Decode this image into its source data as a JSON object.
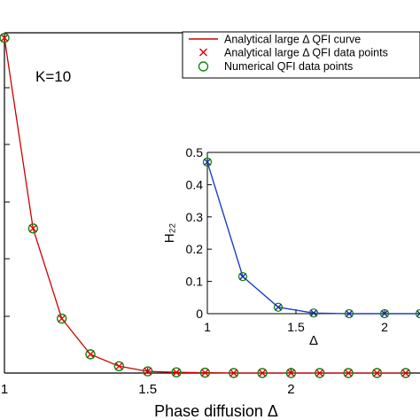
{
  "chart_data": [
    {
      "type": "line",
      "title": "",
      "xlabel": "Phase diffusion Δ",
      "ylabel": "",
      "xlim": [
        1.0,
        2.45
      ],
      "ylim": [
        0,
        1.0
      ],
      "xticks": [
        "1",
        "1.5",
        "2"
      ],
      "annotation": "K=10",
      "legend_position": "top-right",
      "legend": [
        {
          "label": "Analytical large Δ QFI curve",
          "style": "line",
          "color": "#cc0000"
        },
        {
          "label": "Analytical large Δ QFI data points",
          "style": "x-marker",
          "color": "#dd0000"
        },
        {
          "label": "Numerical QFI data points",
          "style": "circle-marker",
          "color": "#118811"
        }
      ],
      "series": [
        {
          "name": "Analytical large Δ QFI curve",
          "x": [
            1.0,
            1.1,
            1.2,
            1.3,
            1.4,
            1.5,
            1.6,
            1.7,
            1.8,
            1.9,
            2.0,
            2.1,
            2.2,
            2.3,
            2.4
          ],
          "y": [
            0.985,
            0.425,
            0.16,
            0.055,
            0.02,
            0.005,
            0.002,
            0.001,
            0.0,
            0.0,
            0.0,
            0.0,
            0.0,
            0.0,
            0.0
          ]
        }
      ]
    },
    {
      "type": "line",
      "title": "",
      "xlabel": "Δ",
      "ylabel": "H₂₂",
      "xlim": [
        1.0,
        2.2
      ],
      "ylim": [
        0,
        0.5
      ],
      "xticks": [
        "1",
        "1.5",
        "2"
      ],
      "yticks": [
        "0",
        "0.1",
        "0.2",
        "0.3",
        "0.4",
        "0.5"
      ],
      "series": [
        {
          "name": "",
          "x": [
            1.0,
            1.2,
            1.4,
            1.6,
            1.8,
            2.0,
            2.2
          ],
          "y": [
            0.47,
            0.115,
            0.02,
            0.002,
            0.0,
            0.0,
            0.0
          ]
        }
      ]
    }
  ],
  "colors": {
    "main_curve": "#cc0000",
    "cross_marker": "#dd0000",
    "circle_marker": "#118811",
    "inset_curve": "#1f3fbf",
    "inset_cross": "#1a2a9a"
  }
}
